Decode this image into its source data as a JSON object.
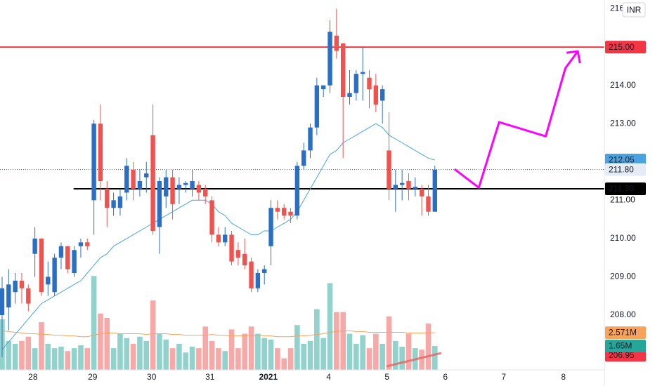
{
  "currency": "INR",
  "chart_data": {
    "type": "candlestick",
    "open": [
      208.0,
      208.2,
      208.6,
      208.9,
      208.7,
      209.6,
      210.0,
      208.8,
      208.6,
      209.5,
      209.8,
      209.1,
      209.8,
      209.9,
      211.0,
      213.0,
      211.3,
      210.8,
      210.8,
      211.2,
      211.8,
      211.3,
      211.6,
      212.7,
      210.3,
      211.1,
      211.6,
      211.3,
      211.4,
      211.3,
      211.4,
      211.3,
      211.0,
      210.1,
      209.9,
      210.1,
      209.7,
      209.6,
      209.4,
      208.7,
      209.1,
      209.8,
      210.8,
      210.8,
      210.7,
      210.6,
      211.9,
      212.3,
      212.9,
      213.9,
      214.0,
      215.3,
      215.1,
      213.7,
      213.8,
      214.3,
      214.2,
      214.0,
      213.6,
      212.3,
      211.3,
      211.4,
      211.5,
      211.3,
      211.3,
      211.1,
      210.7
    ],
    "high": [
      209.0,
      209.2,
      209.1,
      209.1,
      208.8,
      210.3,
      210.0,
      209.4,
      209.6,
      209.9,
      209.8,
      209.8,
      210.0,
      210.0,
      213.1,
      213.5,
      211.5,
      211.2,
      211.3,
      212.1,
      212.0,
      211.8,
      212.0,
      213.5,
      211.6,
      211.8,
      211.8,
      211.6,
      211.5,
      211.8,
      211.5,
      211.4,
      211.1,
      210.3,
      210.3,
      210.2,
      209.9,
      210.0,
      209.5,
      209.2,
      209.3,
      211.0,
      211.0,
      210.9,
      210.8,
      212.0,
      212.5,
      213.0,
      214.2,
      214.0,
      215.7,
      216.0,
      215.1,
      214.4,
      214.4,
      215.0,
      214.4,
      214.3,
      214.0,
      213.3,
      211.8,
      211.8,
      211.7,
      211.6,
      211.4,
      211.4,
      211.9
    ],
    "low": [
      206.9,
      207.6,
      208.3,
      208.3,
      208.1,
      209.0,
      208.5,
      208.5,
      208.5,
      209.2,
      209.1,
      209.0,
      209.5,
      209.7,
      210.1,
      211.0,
      210.3,
      210.6,
      210.6,
      211.0,
      211.0,
      211.1,
      211.2,
      210.1,
      209.6,
      210.8,
      210.5,
      210.9,
      211.2,
      211.1,
      211.0,
      210.9,
      209.9,
      209.8,
      209.8,
      209.3,
      209.3,
      209.2,
      208.6,
      208.6,
      208.8,
      209.3,
      210.5,
      210.5,
      210.4,
      210.5,
      211.8,
      212.1,
      212.7,
      213.7,
      213.8,
      214.7,
      212.1,
      213.5,
      213.6,
      213.6,
      213.4,
      213.3,
      213.0,
      211.0,
      210.7,
      211.0,
      211.0,
      211.1,
      210.6,
      210.6,
      210.7
    ],
    "close": [
      208.7,
      208.8,
      208.9,
      208.7,
      208.3,
      210.0,
      208.6,
      209.0,
      209.5,
      209.8,
      209.2,
      209.7,
      209.9,
      209.8,
      213.0,
      211.5,
      210.8,
      211.0,
      211.1,
      211.9,
      211.3,
      211.5,
      211.7,
      210.2,
      211.5,
      211.6,
      210.9,
      211.4,
      211.45,
      211.5,
      211.2,
      211.1,
      210.1,
      209.9,
      210.1,
      209.4,
      209.5,
      209.3,
      208.7,
      209.1,
      209.2,
      210.8,
      210.7,
      210.6,
      210.6,
      211.9,
      212.3,
      212.9,
      214.0,
      214.0,
      215.4,
      214.9,
      213.7,
      213.8,
      214.3,
      214.35,
      213.9,
      213.5,
      213.9,
      211.3,
      211.4,
      211.45,
      211.3,
      211.35,
      211.1,
      210.7,
      211.8
    ],
    "up_color": "#2a6fc4",
    "down_color": "#ef5350",
    "moving_average": {
      "color": "#4aa3df",
      "values": [
        207.1,
        207.3,
        207.5,
        207.7,
        207.9,
        208.1,
        208.3,
        208.4,
        208.5,
        208.6,
        208.7,
        208.8,
        208.9,
        209.1,
        209.3,
        209.5,
        209.6,
        209.8,
        209.9,
        210.0,
        210.1,
        210.2,
        210.3,
        210.4,
        210.5,
        210.6,
        210.7,
        210.8,
        210.9,
        211.0,
        211.0,
        211.0,
        210.9,
        210.7,
        210.6,
        210.4,
        210.3,
        210.2,
        210.1,
        210.1,
        210.2,
        210.2,
        210.3,
        210.4,
        210.5,
        210.7,
        211.0,
        211.3,
        211.6,
        211.9,
        212.2,
        212.3,
        212.5,
        212.6,
        212.7,
        212.8,
        212.9,
        213.0,
        212.9,
        212.7,
        212.6,
        212.5,
        212.4,
        212.3,
        212.2,
        212.1,
        212.05
      ]
    },
    "volume": {
      "axis": "y2",
      "up_color": "rgba(38,166,154,0.5)",
      "down_color": "rgba(239,83,80,0.5)",
      "values": [
        3.5,
        2.0,
        1.8,
        2.0,
        2.3,
        1.5,
        3.3,
        1.8,
        1.5,
        1.6,
        1.3,
        1.5,
        1.7,
        1.5,
        6.5,
        3.9,
        3.6,
        1.5,
        2.5,
        2.2,
        1.8,
        2.3,
        2.0,
        4.8,
        2.5,
        2.1,
        1.5,
        1.8,
        1.2,
        1.6,
        1.5,
        3.0,
        2.0,
        1.5,
        1.3,
        2.8,
        1.5,
        2.5,
        3.0,
        2.5,
        2.2,
        2.1,
        1.5,
        0.8,
        1.5,
        3.1,
        1.8,
        2.0,
        4.2,
        2.2,
        6.0,
        4.0,
        4.0,
        2.5,
        1.8,
        2.4,
        1.5,
        2.5,
        1.8,
        3.7,
        2.0,
        1.6,
        2.5,
        1.5,
        1.4,
        3.2,
        1.65
      ]
    },
    "volume_ma": {
      "axis": "y2",
      "color": "#f7a35c",
      "values": [
        2.7,
        2.65,
        2.6,
        2.55,
        2.5,
        2.5,
        2.45,
        2.45,
        2.4,
        2.4,
        2.35,
        2.35,
        2.3,
        2.3,
        2.4,
        2.5,
        2.55,
        2.55,
        2.5,
        2.5,
        2.5,
        2.5,
        2.45,
        2.5,
        2.5,
        2.5,
        2.45,
        2.45,
        2.4,
        2.4,
        2.4,
        2.4,
        2.45,
        2.4,
        2.4,
        2.35,
        2.35,
        2.35,
        2.4,
        2.4,
        2.35,
        2.35,
        2.3,
        2.3,
        2.3,
        2.35,
        2.35,
        2.4,
        2.45,
        2.5,
        2.6,
        2.65,
        2.7,
        2.7,
        2.65,
        2.65,
        2.6,
        2.6,
        2.6,
        2.6,
        2.6,
        2.6,
        2.55,
        2.55,
        2.55,
        2.57,
        2.571
      ]
    },
    "horizontal_lines": [
      {
        "value": 215.0,
        "color": "#f23645",
        "from": -0.32,
        "style": "solid"
      },
      {
        "value": 211.3,
        "color": "#000000",
        "from": 10.9,
        "style": "solid"
      },
      {
        "value": 211.8,
        "color": "#2962ff",
        "from": -0.32,
        "style": "dotted"
      }
    ],
    "projection": {
      "color": "#ff00ff",
      "x": [
        69.0,
        72.7,
        75.8,
        82.9,
        85.9,
        87.8
      ],
      "y": [
        211.81,
        211.33,
        213.04,
        212.67,
        214.45,
        214.89
      ]
    },
    "price_labels": [
      {
        "value": 215.0,
        "label": "215.00",
        "color": "#f23645",
        "text_color": "#ffffff"
      },
      {
        "value": 212.05,
        "label": "212.05",
        "color": "#4aa3df",
        "text_color": "#ffffff"
      },
      {
        "value": 211.8,
        "label": "211.80",
        "color": "#e6ecf5",
        "text_color": "#131722"
      },
      {
        "value": 211.3,
        "label": "211.30",
        "color": "#000000",
        "text_color": "#ffffff"
      },
      {
        "value": 206.95,
        "label": "206.95",
        "color": "#f23645",
        "text_color": "#ffffff"
      }
    ],
    "volume_labels": [
      {
        "value": 2.571,
        "label": "2.571M",
        "color": "#f7a35c",
        "text_color": "#ffffff"
      },
      {
        "value": 1.65,
        "label": "1.65M",
        "color": "#26a69a",
        "text_color": "#ffffff"
      }
    ],
    "xlim": [
      -0.32,
      91.85
    ],
    "ylim": [
      206.57,
      216.23
    ],
    "y2lim": [
      0,
      25.6
    ],
    "yticks": [
      {
        "value": 208,
        "label": "208.00"
      },
      {
        "value": 209,
        "label": "209.00"
      },
      {
        "value": 210,
        "label": "210.00"
      },
      {
        "value": 211,
        "label": "211.00"
      },
      {
        "value": 213,
        "label": "213.00"
      },
      {
        "value": 214,
        "label": "214.00"
      },
      {
        "value": 216,
        "label": "216.00"
      }
    ],
    "xticks": [
      {
        "value": 4.7,
        "label": "28"
      },
      {
        "value": 13.8,
        "label": "29"
      },
      {
        "value": 22.8,
        "label": "30"
      },
      {
        "value": 31.7,
        "label": "31"
      },
      {
        "value": 40.6,
        "label": "2021"
      },
      {
        "value": 49.8,
        "label": "4"
      },
      {
        "value": 58.7,
        "label": "5"
      },
      {
        "value": 67.6,
        "label": "6"
      },
      {
        "value": 76.5,
        "label": "7"
      },
      {
        "value": 85.6,
        "label": "8"
      }
    ],
    "grid": false
  }
}
